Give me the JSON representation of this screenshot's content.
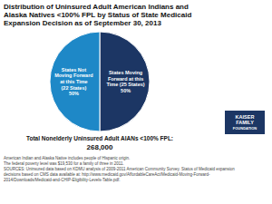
{
  "chart_data": {
    "type": "pie",
    "title": "Distribution of Uninsured Adult American Indians and\nAlaska Natives <100% FPL by Status of State Medicaid\nExpansion Decision as of September 30, 2013",
    "categories": [
      "States Moving\nForward at this\nTime (25 States)",
      "States Not\nMoving Forward\nat this Time\n(22 States)"
    ],
    "values": [
      50,
      50
    ],
    "value_labels": [
      "50%",
      "50%"
    ],
    "data_labels": true,
    "colors": [
      "#1c3664",
      "#1e88c7"
    ],
    "annotations": [
      "Total Nonelderly Uninsured Adult AIANs <100% FPL:",
      "268,000",
      "American Indian and Alaska Native includes people of Hispanic origin.",
      "The federal poverty level was $19,530 for a family of three  in 2011.",
      "SOURCES: Uninsured data based on KDMU analysis of 2009-2011 American Community Survey. Status of Medicaid expansion",
      "decisions based on CMS data available at: http://www.medicaid.gov/AffordableCareAct/Medicaid-Moving-Forward-",
      "2014/Downloads/Medicaid-and-CHIP-Eligibility-Levels-Table.pdf.",
      "KAISER",
      "FAMILY",
      "FOUNDATION"
    ]
  }
}
